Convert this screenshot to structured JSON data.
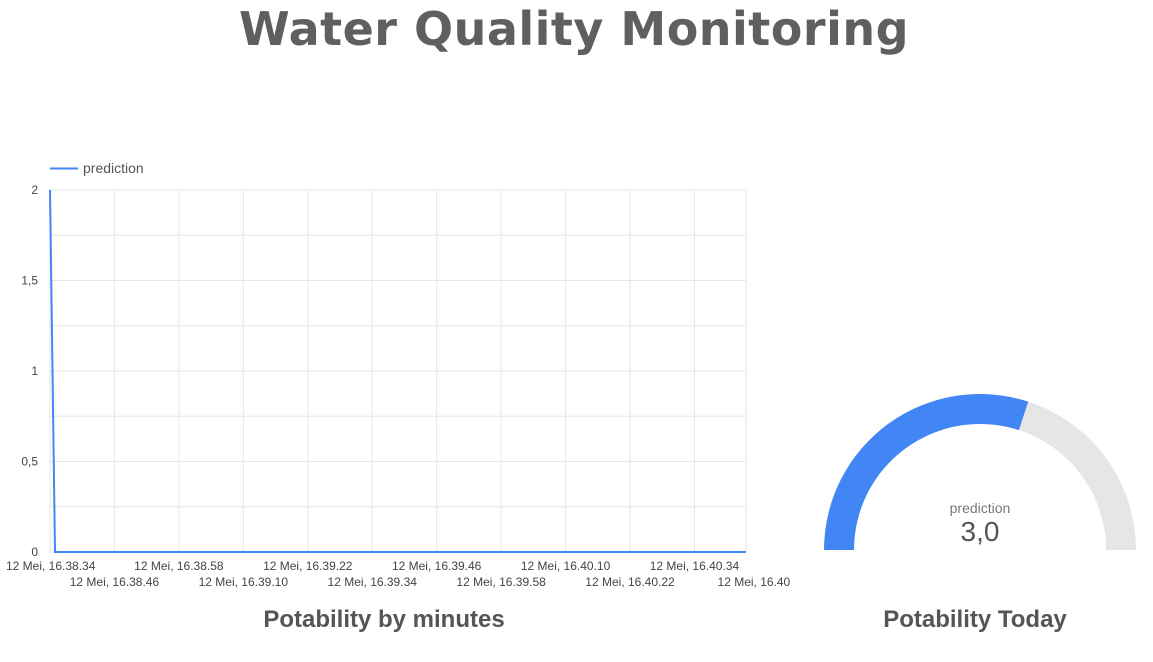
{
  "header": {
    "title": "Water Quality Monitoring"
  },
  "captions": {
    "line_chart": "Potability by minutes",
    "gauge_chart": "Potability Today"
  },
  "colors": {
    "series": "#4285f4",
    "gauge_track": "#e6e6e6",
    "grid": "#e6e6e6",
    "axis_text": "#444444",
    "title_text": "#5f5f5f"
  },
  "chart_data": [
    {
      "type": "line",
      "legend": {
        "position": "top-left",
        "entries": [
          "prediction"
        ]
      },
      "grid": true,
      "ylim": [
        0,
        2
      ],
      "y_ticks": [
        "0",
        "0,5",
        "1",
        "1,5",
        "2"
      ],
      "x_ticks": [
        "12 Mei, 16.38.34",
        "12 Mei, 16.38.46",
        "12 Mei, 16.38.58",
        "12 Mei, 16.39.10",
        "12 Mei, 16.39.22",
        "12 Mei, 16.39.34",
        "12 Mei, 16.39.46",
        "12 Mei, 16.39.58",
        "12 Mei, 16.40.10",
        "12 Mei, 16.40.22",
        "12 Mei, 16.40.34",
        "12 Mei, 16.40..."
      ],
      "series": [
        {
          "name": "prediction",
          "values": [
            2,
            0,
            0,
            0,
            0,
            0,
            0,
            0,
            0,
            0,
            0,
            0
          ]
        }
      ]
    },
    {
      "type": "gauge",
      "metric": "prediction",
      "value_label": "3,0",
      "value": 3.0,
      "filled_fraction": 0.6
    }
  ]
}
